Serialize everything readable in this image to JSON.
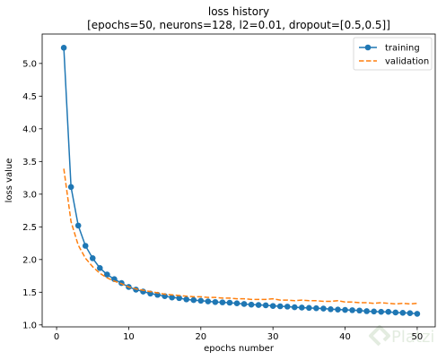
{
  "chart_data": {
    "type": "line",
    "title": "loss history",
    "subtitle": "[epochs=50, neurons=128, l2=0.01, dropout=[0.5,0.5]]",
    "xlabel": "epochs number",
    "ylabel": "loss value",
    "xlim": [
      -2.0,
      52.5
    ],
    "ylim": [
      0.97,
      5.45
    ],
    "xticks": [
      0,
      10,
      20,
      30,
      40,
      50
    ],
    "yticks": [
      1.0,
      1.5,
      2.0,
      2.5,
      3.0,
      3.5,
      4.0,
      4.5,
      5.0
    ],
    "grid": false,
    "legend_position": "top-right",
    "x": [
      1,
      2,
      3,
      4,
      5,
      6,
      7,
      8,
      9,
      10,
      11,
      12,
      13,
      14,
      15,
      16,
      17,
      18,
      19,
      20,
      21,
      22,
      23,
      24,
      25,
      26,
      27,
      28,
      29,
      30,
      31,
      32,
      33,
      34,
      35,
      36,
      37,
      38,
      39,
      40,
      41,
      42,
      43,
      44,
      45,
      46,
      47,
      48,
      49,
      50
    ],
    "series": [
      {
        "name": "training",
        "color": "#1f77b4",
        "style": "solid-marker",
        "values": [
          5.24,
          3.11,
          2.52,
          2.21,
          2.02,
          1.87,
          1.77,
          1.7,
          1.64,
          1.58,
          1.54,
          1.51,
          1.48,
          1.46,
          1.44,
          1.42,
          1.41,
          1.39,
          1.38,
          1.37,
          1.36,
          1.35,
          1.345,
          1.34,
          1.33,
          1.32,
          1.31,
          1.305,
          1.3,
          1.29,
          1.285,
          1.28,
          1.27,
          1.265,
          1.26,
          1.255,
          1.25,
          1.24,
          1.235,
          1.23,
          1.225,
          1.22,
          1.21,
          1.205,
          1.2,
          1.2,
          1.19,
          1.185,
          1.18,
          1.17
        ]
      },
      {
        "name": "validation",
        "color": "#ff7f0e",
        "style": "dashed",
        "values": [
          3.39,
          2.58,
          2.22,
          2.02,
          1.89,
          1.79,
          1.72,
          1.67,
          1.63,
          1.58,
          1.55,
          1.53,
          1.51,
          1.49,
          1.47,
          1.46,
          1.45,
          1.44,
          1.43,
          1.43,
          1.42,
          1.42,
          1.41,
          1.41,
          1.4,
          1.4,
          1.39,
          1.39,
          1.39,
          1.4,
          1.38,
          1.38,
          1.37,
          1.38,
          1.37,
          1.37,
          1.36,
          1.36,
          1.37,
          1.35,
          1.35,
          1.34,
          1.34,
          1.33,
          1.34,
          1.33,
          1.32,
          1.33,
          1.32,
          1.33
        ]
      }
    ]
  },
  "watermark": {
    "text": "Platzi",
    "icon": "platzi-logo-icon"
  }
}
